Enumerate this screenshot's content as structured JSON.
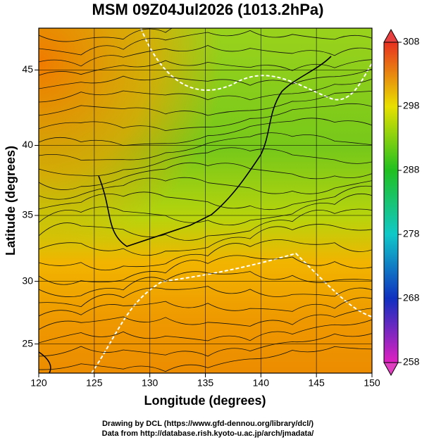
{
  "title": "MSM 09Z04Jul2026 (1013.2hPa)",
  "x_axis": {
    "label": "Longitude (degrees)",
    "range": [
      120,
      150
    ],
    "ticks": [
      120,
      125,
      130,
      135,
      140,
      145,
      150
    ]
  },
  "y_axis": {
    "label": "Latitude  (degrees)",
    "range": [
      22.6,
      47.6
    ],
    "ticks": [
      25,
      30,
      35,
      40,
      45
    ]
  },
  "colorbar": {
    "range": [
      258,
      308
    ],
    "ticks": [
      258,
      268,
      278,
      288,
      298,
      308
    ]
  },
  "credits": [
    "Drawing by DCL (https://www.gfd-dennou.org/library/dcl/)",
    "Data from http://database.rish.kyoto-u.ac.jp/arch/jmadata/"
  ]
}
